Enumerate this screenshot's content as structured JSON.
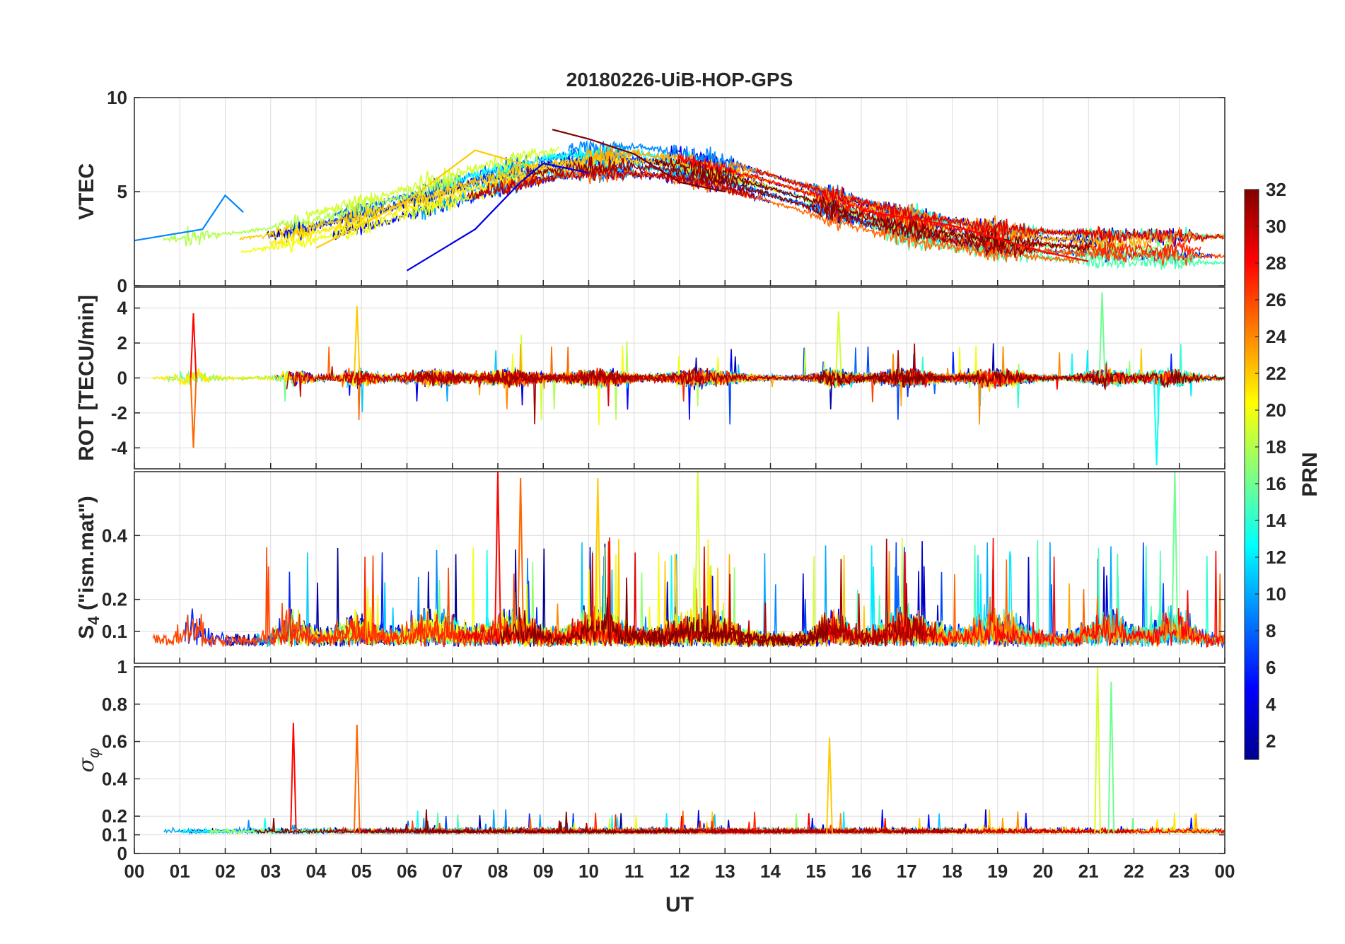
{
  "chart_data": {
    "type": "line",
    "title": "20180226-UiB-HOP-GPS",
    "xlabel": "UT",
    "x_range_hours": [
      0,
      24
    ],
    "x_ticks": [
      "00",
      "01",
      "02",
      "03",
      "04",
      "05",
      "06",
      "07",
      "08",
      "09",
      "10",
      "11",
      "12",
      "13",
      "14",
      "15",
      "16",
      "17",
      "18",
      "19",
      "20",
      "21",
      "22",
      "23",
      "00"
    ],
    "grid": true,
    "colorbar": {
      "label": "PRN",
      "range": [
        1,
        32
      ],
      "ticks": [
        "2",
        "4",
        "6",
        "8",
        "10",
        "12",
        "14",
        "16",
        "18",
        "20",
        "22",
        "24",
        "26",
        "28",
        "30",
        "32"
      ],
      "colormap": "jet",
      "stops": [
        "#00008f",
        "#0000ff",
        "#0080ff",
        "#00ffff",
        "#80ff80",
        "#ffff00",
        "#ff8000",
        "#ff0000",
        "#800000"
      ]
    },
    "panels": [
      {
        "id": "vtec",
        "ylabel": "VTEC",
        "ylim": [
          0,
          10
        ],
        "ytick_values": [
          0,
          5,
          10
        ],
        "yticks": [
          "0",
          "5",
          "10"
        ],
        "description_series": [
          {
            "prn": 9,
            "approx_points": [
              [
                0,
                2.4
              ],
              [
                1.5,
                3
              ],
              [
                2,
                4.8
              ],
              [
                2.4,
                3.9
              ]
            ]
          },
          {
            "prn": 22,
            "approx_points": [
              [
                4,
                2
              ],
              [
                6,
                4.5
              ],
              [
                7.5,
                7.2
              ],
              [
                8.5,
                6.5
              ],
              [
                9,
                6.2
              ]
            ]
          },
          {
            "prn": 32,
            "approx_points": [
              [
                9.2,
                8.3
              ],
              [
                10,
                7.8
              ],
              [
                11,
                7
              ],
              [
                12,
                5.5
              ],
              [
                13,
                5
              ]
            ]
          },
          {
            "prn": 4,
            "approx_points": [
              [
                6,
                0.8
              ],
              [
                7.5,
                3
              ],
              [
                8.5,
                5.5
              ],
              [
                9,
                6.5
              ],
              [
                10,
                6
              ]
            ]
          },
          {
            "prn": 28,
            "approx_points": [
              [
                16,
                4
              ],
              [
                18,
                3.2
              ],
              [
                20,
                1.8
              ],
              [
                21,
                1.3
              ]
            ]
          }
        ]
      },
      {
        "id": "rot",
        "ylabel": "ROT [TECU/min]",
        "ylim": [
          -5.2,
          5.2
        ],
        "ytick_values": [
          -4,
          -2,
          0,
          2,
          4
        ],
        "yticks": [
          "-4",
          "-2",
          "0",
          "2",
          "4"
        ],
        "peaks": [
          {
            "x": 1.3,
            "y": 3.7
          },
          {
            "x": 1.3,
            "y": -4.0
          },
          {
            "x": 4.9,
            "y": 4.1
          },
          {
            "x": 15.5,
            "y": 3.8
          },
          {
            "x": 21.3,
            "y": 4.9
          },
          {
            "x": 22.5,
            "y": -5.0
          }
        ]
      },
      {
        "id": "s4",
        "ylabel": "S4 (\"ism.mat\")",
        "ylabel_main": "S",
        "ylabel_sub": "4",
        "ylabel_rest": " (\"ism.mat\")",
        "ylim": [
          0,
          0.6
        ],
        "ytick_values": [
          0.1,
          0.2,
          0.4
        ],
        "yticks": [
          "0.1",
          "0.2",
          "0.4"
        ],
        "peaks": [
          {
            "x": 8.0,
            "y": 0.6
          },
          {
            "x": 8.5,
            "y": 0.58
          },
          {
            "x": 10.2,
            "y": 0.58
          },
          {
            "x": 12.4,
            "y": 0.6
          },
          {
            "x": 22.9,
            "y": 0.6
          }
        ]
      },
      {
        "id": "sigma_phi",
        "ylabel": "σ_φ",
        "ylabel_main": "σ",
        "ylabel_sub": "φ",
        "ylim": [
          0,
          1
        ],
        "ytick_values": [
          0,
          0.1,
          0.2,
          0.4,
          0.6,
          0.8,
          1
        ],
        "yticks": [
          "0",
          "0.1",
          "0.2",
          "0.4",
          "0.6",
          "0.8",
          "1"
        ],
        "peaks": [
          {
            "x": 3.5,
            "y": 0.7
          },
          {
            "x": 4.9,
            "y": 0.69
          },
          {
            "x": 15.3,
            "y": 0.62
          },
          {
            "x": 21.2,
            "y": 1.0
          },
          {
            "x": 21.5,
            "y": 0.92
          }
        ]
      }
    ]
  }
}
